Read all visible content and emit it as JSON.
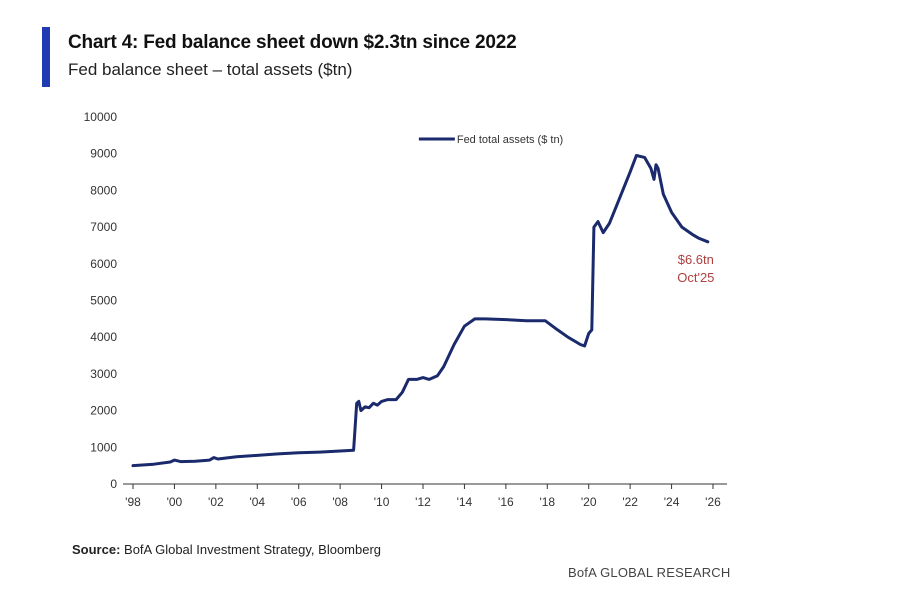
{
  "chart_data": {
    "type": "line",
    "title": "Chart 4: Fed balance sheet down $2.3tn since 2022",
    "subtitle": "Fed balance sheet – total assets ($tn)",
    "xlabel": "",
    "ylabel": "",
    "ylim": [
      0,
      10000
    ],
    "yticks": [
      0,
      1000,
      2000,
      3000,
      4000,
      5000,
      6000,
      7000,
      8000,
      9000,
      10000
    ],
    "xlim": [
      1998,
      2026
    ],
    "xticks": [
      1998,
      2000,
      2002,
      2004,
      2006,
      2008,
      2010,
      2012,
      2014,
      2016,
      2018,
      2020,
      2022,
      2024,
      2026
    ],
    "xtick_labels": [
      "'98",
      "'00",
      "'02",
      "'04",
      "'06",
      "'08",
      "'10",
      "'12",
      "'14",
      "'16",
      "'18",
      "'20",
      "'22",
      "'24",
      "'26"
    ],
    "grid": false,
    "legend": {
      "position": "top-center",
      "entries": [
        "Fed total assets ($ tn)"
      ]
    },
    "series": [
      {
        "name": "Fed total assets ($ tn)",
        "color": "#1a2a6c",
        "x": [
          1998.0,
          1999.0,
          1999.8,
          2000.0,
          2000.3,
          2001.0,
          2001.7,
          2001.9,
          2002.1,
          2003.0,
          2004.0,
          2005.0,
          2006.0,
          2007.0,
          2008.0,
          2008.65,
          2008.8,
          2008.9,
          2009.0,
          2009.2,
          2009.4,
          2009.6,
          2009.8,
          2010.0,
          2010.3,
          2010.7,
          2011.0,
          2011.3,
          2011.7,
          2012.0,
          2012.3,
          2012.7,
          2013.0,
          2013.5,
          2014.0,
          2014.5,
          2015.0,
          2016.0,
          2017.0,
          2017.9,
          2018.5,
          2019.0,
          2019.6,
          2019.8,
          2020.0,
          2020.15,
          2020.25,
          2020.45,
          2020.7,
          2021.0,
          2021.5,
          2022.0,
          2022.3,
          2022.7,
          2023.0,
          2023.15,
          2023.25,
          2023.35,
          2023.6,
          2024.0,
          2024.5,
          2025.0,
          2025.3,
          2025.75
        ],
        "values": [
          500,
          540,
          600,
          650,
          610,
          620,
          650,
          720,
          680,
          740,
          780,
          820,
          850,
          870,
          900,
          920,
          2200,
          2250,
          2000,
          2100,
          2080,
          2200,
          2150,
          2250,
          2300,
          2300,
          2500,
          2850,
          2850,
          2900,
          2850,
          2950,
          3200,
          3800,
          4300,
          4500,
          4500,
          4480,
          4450,
          4450,
          4200,
          4000,
          3800,
          3760,
          4100,
          4200,
          7000,
          7150,
          6850,
          7100,
          7800,
          8500,
          8950,
          8900,
          8600,
          8300,
          8700,
          8600,
          7900,
          7400,
          7000,
          6800,
          6700,
          6600
        ]
      }
    ],
    "annotations": [
      {
        "text": "$6.6tn",
        "x": 2025.75,
        "y": 6600,
        "color": "#b04040"
      },
      {
        "text": "Oct'25",
        "x": 2025.75,
        "y": 6600,
        "color": "#b04040"
      }
    ]
  },
  "footer": {
    "source_label": "Source:",
    "source_text": " BofA Global Investment Strategy, Bloomberg",
    "brand": "BofA GLOBAL RESEARCH"
  }
}
